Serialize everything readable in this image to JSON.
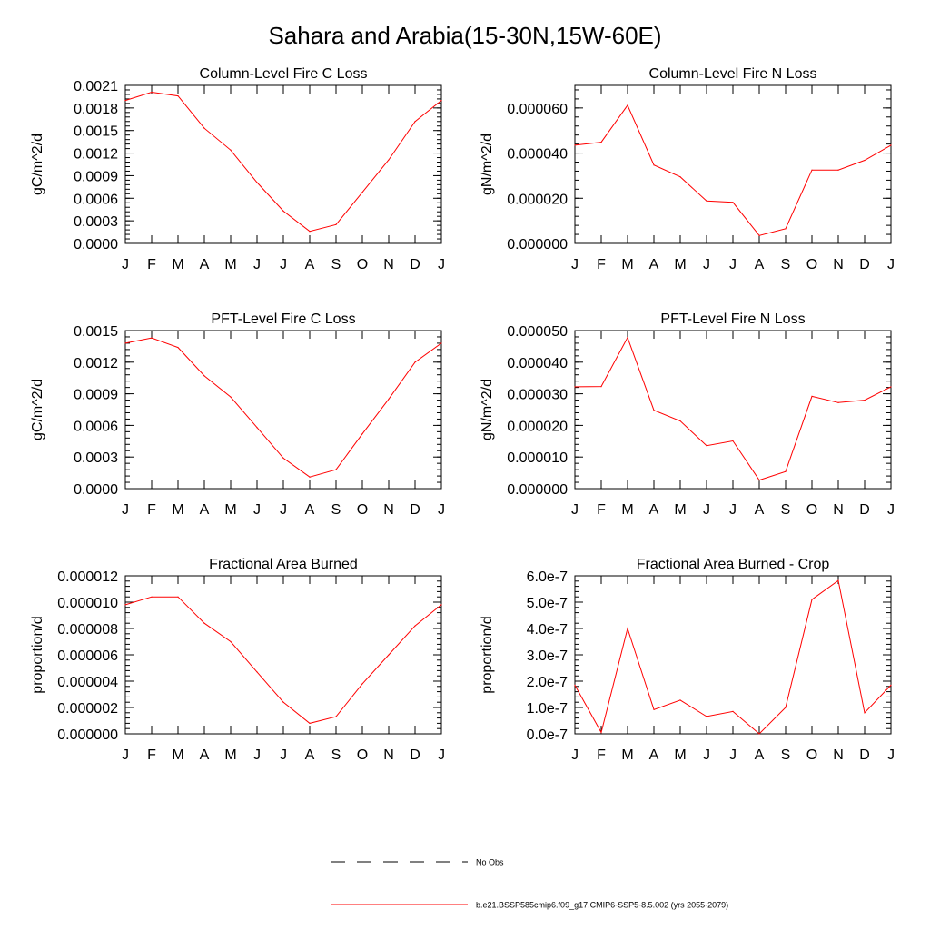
{
  "figure_title": "Sahara and Arabia(15-30N,15W-60E)",
  "legend": [
    {
      "label": "No Obs",
      "style": "dashed",
      "color": "#000000"
    },
    {
      "label": "b.e21.BSSP585cmip6.f09_g17.CMIP6-SSP5-8.5.002 (yrs 2055-2079)",
      "style": "solid",
      "color": "#ff0000"
    }
  ],
  "chart_data": [
    {
      "type": "line",
      "title": "Column-Level Fire C Loss",
      "ylabel": "gC/m^2/d",
      "categories": [
        "J",
        "F",
        "M",
        "A",
        "M",
        "J",
        "J",
        "A",
        "S",
        "O",
        "N",
        "D",
        "J"
      ],
      "ylim": [
        0,
        0.0021
      ],
      "yticks": [
        "0.0000",
        "0.0003",
        "0.0006",
        "0.0009",
        "0.0012",
        "0.0015",
        "0.0018",
        "0.0021"
      ],
      "series": [
        {
          "color": "#ff0000",
          "values": [
            0.0019,
            0.00201,
            0.00196,
            0.00153,
            0.00124,
            0.00081,
            0.00043,
            0.00016,
            0.00025,
            0.00068,
            0.00111,
            0.00162,
            0.0019
          ]
        }
      ]
    },
    {
      "type": "line",
      "title": "Column-Level Fire N Loss",
      "ylabel": "gN/m^2/d",
      "categories": [
        "J",
        "F",
        "M",
        "A",
        "M",
        "J",
        "J",
        "A",
        "S",
        "O",
        "N",
        "D",
        "J"
      ],
      "ylim": [
        0,
        7e-05
      ],
      "yticks": [
        "0.000000",
        "0.000020",
        "0.000040",
        "0.000060"
      ],
      "series": [
        {
          "color": "#ff0000",
          "values": [
            4.35e-05,
            4.48e-05,
            6.12e-05,
            3.47e-05,
            2.95e-05,
            1.88e-05,
            1.82e-05,
            3.5e-06,
            6.5e-06,
            3.25e-05,
            3.25e-05,
            3.68e-05,
            4.35e-05
          ]
        }
      ]
    },
    {
      "type": "line",
      "title": "PFT-Level Fire C Loss",
      "ylabel": "gC/m^2/d",
      "categories": [
        "J",
        "F",
        "M",
        "A",
        "M",
        "J",
        "J",
        "A",
        "S",
        "O",
        "N",
        "D",
        "J"
      ],
      "ylim": [
        0,
        0.0015
      ],
      "yticks": [
        "0.0000",
        "0.0003",
        "0.0006",
        "0.0009",
        "0.0012",
        "0.0015"
      ],
      "series": [
        {
          "color": "#ff0000",
          "values": [
            0.00138,
            0.00143,
            0.00134,
            0.00107,
            0.00087,
            0.00058,
            0.00029,
            0.00011,
            0.00018,
            0.00052,
            0.00085,
            0.0012,
            0.00138
          ]
        }
      ]
    },
    {
      "type": "line",
      "title": "PFT-Level Fire N Loss",
      "ylabel": "gN/m^2/d",
      "categories": [
        "J",
        "F",
        "M",
        "A",
        "M",
        "J",
        "J",
        "A",
        "S",
        "O",
        "N",
        "D",
        "J"
      ],
      "ylim": [
        0,
        5e-05
      ],
      "yticks": [
        "0.000000",
        "0.000010",
        "0.000020",
        "0.000030",
        "0.000040",
        "0.000050"
      ],
      "series": [
        {
          "color": "#ff0000",
          "values": [
            3.22e-05,
            3.23e-05,
            4.78e-05,
            2.48e-05,
            2.14e-05,
            1.36e-05,
            1.51e-05,
            2.7e-06,
            5.4e-06,
            2.92e-05,
            2.72e-05,
            2.8e-05,
            3.22e-05
          ]
        }
      ]
    },
    {
      "type": "line",
      "title": "Fractional Area Burned",
      "ylabel": "proportion/d",
      "categories": [
        "J",
        "F",
        "M",
        "A",
        "M",
        "J",
        "J",
        "A",
        "S",
        "O",
        "N",
        "D",
        "J"
      ],
      "ylim": [
        0,
        1.2e-05
      ],
      "yticks": [
        "0.000000",
        "0.000002",
        "0.000004",
        "0.000006",
        "0.000008",
        "0.000010",
        "0.000012"
      ],
      "series": [
        {
          "color": "#ff0000",
          "values": [
            9.8e-06,
            1.04e-05,
            1.04e-05,
            8.4e-06,
            7e-06,
            4.7e-06,
            2.4e-06,
            8e-07,
            1.3e-06,
            3.8e-06,
            6e-06,
            8.2e-06,
            9.8e-06
          ]
        }
      ]
    },
    {
      "type": "line",
      "title": "Fractional Area Burned - Crop",
      "ylabel": "proportion/d",
      "categories": [
        "J",
        "F",
        "M",
        "A",
        "M",
        "J",
        "J",
        "A",
        "S",
        "O",
        "N",
        "D",
        "J"
      ],
      "ylim": [
        0,
        6e-07
      ],
      "yticks": [
        "0.0e-7",
        "1.0e-7",
        "2.0e-7",
        "3.0e-7",
        "4.0e-7",
        "5.0e-7",
        "6.0e-7"
      ],
      "series": [
        {
          "color": "#ff0000",
          "values": [
            1.85e-07,
            5e-09,
            4e-07,
            9.2e-08,
            1.28e-07,
            6.6e-08,
            8.5e-08,
            0.0,
            1e-07,
            5.1e-07,
            5.82e-07,
            8e-08,
            1.85e-07
          ]
        }
      ]
    }
  ]
}
